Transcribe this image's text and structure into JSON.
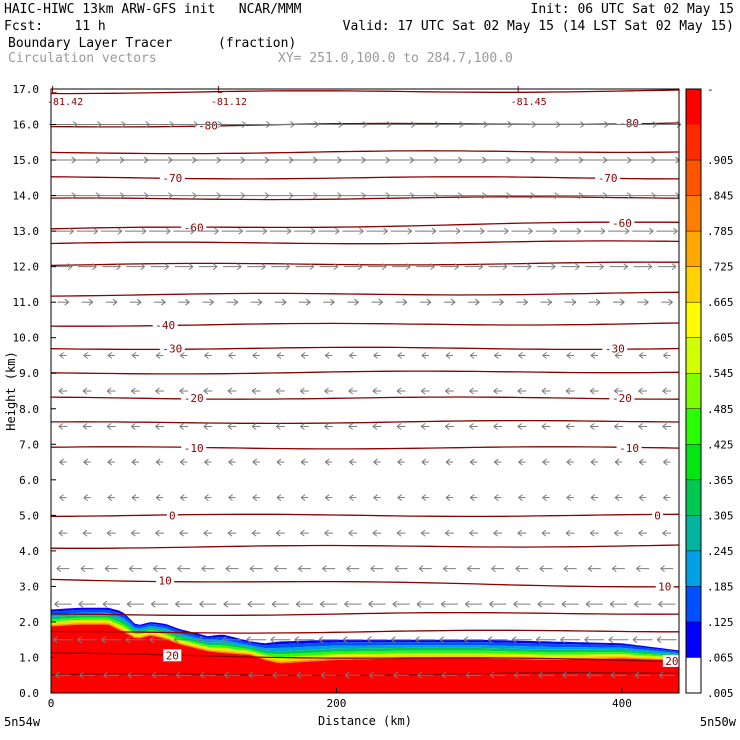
{
  "header": {
    "left_line1": "HAIC-HIWC 13km ARW-GFS init   NCAR/MMM",
    "left_line2": "Fcst:    11 h",
    "right_line1": "Init: 06 UTC Sat 02 May 15",
    "right_line2": "Valid: 17 UTC Sat 02 May 15 (14 LST Sat 02 May 15)",
    "field_name": "Boundary Layer Tracer",
    "field_units": "(fraction)",
    "vector_name": "Circulation vectors",
    "xy_text": "XY= 251.0,100.0 to 284.7,100.0"
  },
  "chart_data": {
    "type": "heatmap",
    "xlabel": "Distance (km)",
    "ylabel": "Height (km)",
    "xlim": [
      0,
      440
    ],
    "ylim": [
      0,
      17
    ],
    "x_ticks": [
      0,
      200,
      400
    ],
    "x_tick_labels": [
      "0",
      "200",
      "400"
    ],
    "y_ticks": [
      0,
      1,
      2,
      3,
      4,
      5,
      6,
      7,
      8,
      9,
      10,
      11,
      12,
      13,
      14,
      15,
      16,
      17
    ],
    "y_tick_labels": [
      "0.0",
      "1.0",
      "2.0",
      "3.0",
      "4.0",
      "5.0",
      "6.0",
      "7.0",
      "8.0",
      "9.0",
      "10.0",
      "11.0",
      "12.0",
      "13.0",
      "14.0",
      "15.0",
      "16.0",
      "17.0"
    ],
    "x_end_labels": [
      "5n54w",
      "5n50w"
    ],
    "extremum_labels": [
      {
        "mark": "L",
        "text": "-81.42",
        "x": 0,
        "y": 16.6
      },
      {
        "mark": "L",
        "text": "-81.12",
        "x": 112,
        "y": 16.6
      },
      {
        "mark": "L",
        "text": "-81.45",
        "x": 322,
        "y": 16.6
      }
    ],
    "colorbar": {
      "labels": [
        ".905",
        ".845",
        ".785",
        ".725",
        ".665",
        ".605",
        ".545",
        ".485",
        ".425",
        ".365",
        ".305",
        ".245",
        ".185",
        ".125",
        ".065",
        ".005"
      ],
      "top_label": "-",
      "colors": [
        "#ff0000",
        "#ff2a00",
        "#ff5400",
        "#ff7e00",
        "#ffa800",
        "#ffd200",
        "#fffc00",
        "#d2ff00",
        "#7dff00",
        "#28ff00",
        "#00e614",
        "#00c850",
        "#00b4a0",
        "#00a0e6",
        "#0050ff",
        "#0000ff"
      ]
    },
    "tracer_profile": {
      "x": [
        0,
        20,
        40,
        50,
        60,
        70,
        80,
        90,
        100,
        110,
        120,
        140,
        150,
        160,
        200,
        250,
        300,
        350,
        400,
        440
      ],
      "top": [
        2.35,
        2.4,
        2.4,
        2.3,
        1.9,
        2.0,
        1.95,
        1.8,
        1.7,
        1.6,
        1.65,
        1.45,
        1.4,
        1.45,
        1.5,
        1.5,
        1.5,
        1.45,
        1.4,
        1.2
      ],
      "red": [
        1.85,
        1.9,
        1.9,
        1.7,
        1.5,
        1.6,
        1.5,
        1.35,
        1.25,
        1.15,
        1.1,
        1.05,
        0.9,
        0.8,
        0.9,
        0.95,
        0.95,
        0.9,
        0.95,
        0.9
      ]
    },
    "temperature_contours": [
      {
        "value": -80,
        "label": "-80",
        "y_left": 15.95,
        "y_right": 16.05,
        "label_x": [
          110,
          405
        ]
      },
      {
        "value": -70,
        "label": "-70",
        "y_left": 14.5,
        "y_right": 14.5,
        "label_x": [
          85,
          390
        ]
      },
      {
        "value": -60,
        "label": "-60",
        "y_left": 13.05,
        "y_right": 13.25,
        "label_x": [
          100,
          400
        ]
      },
      {
        "value": -40,
        "label": "-40",
        "y_left": 10.35,
        "y_right": 10.4,
        "label_x": [
          80
        ]
      },
      {
        "value": -30,
        "label": "-30",
        "y_left": 9.7,
        "y_right": 9.7,
        "label_x": [
          85,
          395
        ]
      },
      {
        "value": -20,
        "label": "-20",
        "y_left": 8.3,
        "y_right": 8.3,
        "label_x": [
          100,
          400
        ]
      },
      {
        "value": -10,
        "label": "-10",
        "y_left": 6.9,
        "y_right": 6.9,
        "label_x": [
          100,
          405
        ]
      },
      {
        "value": 0,
        "label": "0",
        "y_left": 5.0,
        "y_right": 5.0,
        "label_x": [
          85,
          425
        ]
      },
      {
        "value": 10,
        "label": "10",
        "y_left": 3.2,
        "y_right": 3.0,
        "label_x": [
          80,
          430
        ]
      },
      {
        "value": 20,
        "label": "20",
        "y_left": 1.1,
        "y_right": 0.9,
        "label_x": [
          85,
          435
        ]
      }
    ],
    "unlabeled_contours": [
      16.9,
      15.2,
      13.9,
      12.65,
      12.05,
      11.2,
      9.0,
      7.6,
      4.1,
      2.2,
      1.7,
      0.5
    ],
    "wind_profile": [
      {
        "z": 16.0,
        "u": 1.0
      },
      {
        "z": 15.0,
        "u": 0.9
      },
      {
        "z": 14.0,
        "u": 0.9
      },
      {
        "z": 13.0,
        "u": 0.75
      },
      {
        "z": 12.0,
        "u": 0.65
      },
      {
        "z": 11.0,
        "u": 0.4
      },
      {
        "z": 10.3,
        "u": 0.0
      },
      {
        "z": 9.5,
        "u": -0.25
      },
      {
        "z": 8.5,
        "u": -0.3
      },
      {
        "z": 7.5,
        "u": -0.3
      },
      {
        "z": 6.5,
        "u": -0.25
      },
      {
        "z": 5.5,
        "u": -0.25
      },
      {
        "z": 4.5,
        "u": -0.3
      },
      {
        "z": 3.5,
        "u": -0.45
      },
      {
        "z": 2.5,
        "u": -0.6
      },
      {
        "z": 1.5,
        "u": -0.7
      },
      {
        "z": 0.5,
        "u": -0.55
      }
    ],
    "colors": {
      "contour": "#8b0000",
      "vector": "#7a7a7a"
    }
  }
}
